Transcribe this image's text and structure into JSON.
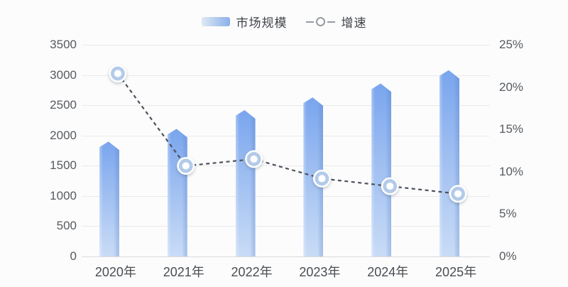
{
  "legend": {
    "bar_label": "市场规模",
    "line_label": "增速"
  },
  "chart_data": {
    "type": "bar+line",
    "categories": [
      "2020年",
      "2021年",
      "2022年",
      "2023年",
      "2024年",
      "2025年"
    ],
    "series": [
      {
        "name": "市场规模",
        "type": "bar",
        "axis": "left",
        "values": [
          1900,
          2110,
          2420,
          2630,
          2860,
          3080
        ]
      },
      {
        "name": "增速",
        "type": "line",
        "axis": "right",
        "values_pct": [
          21.6,
          10.7,
          11.5,
          9.2,
          8.3,
          7.4
        ]
      }
    ],
    "left_axis": {
      "min": 0,
      "max": 3500,
      "step": 500,
      "tick_values": [
        3500,
        3000,
        2500,
        2000,
        1500,
        1000,
        500,
        0
      ],
      "tick_labels": [
        "3500",
        "3000",
        "2500",
        "2000",
        "1500",
        "1000",
        "500",
        "0"
      ]
    },
    "right_axis": {
      "min": 0,
      "max": 25,
      "step": 5,
      "tick_values": [
        25,
        20,
        15,
        10,
        5,
        0
      ],
      "tick_labels": [
        "25%",
        "20%",
        "15%",
        "10%",
        "5%",
        "0%"
      ]
    },
    "grid": "horizontal",
    "legend_position": "top-center",
    "title": "",
    "xlabel": "",
    "ylabel": ""
  },
  "colors": {
    "bar_gradient_top": "#79a5ee",
    "bar_gradient_bottom": "#c9dcf6",
    "line": "#4d525c",
    "marker_ring": "#b3cbe9",
    "marker_fill": "#ffffff",
    "gridline": "#eaeaea",
    "axis_text": "#565b60",
    "background": "#fcfcfc"
  }
}
